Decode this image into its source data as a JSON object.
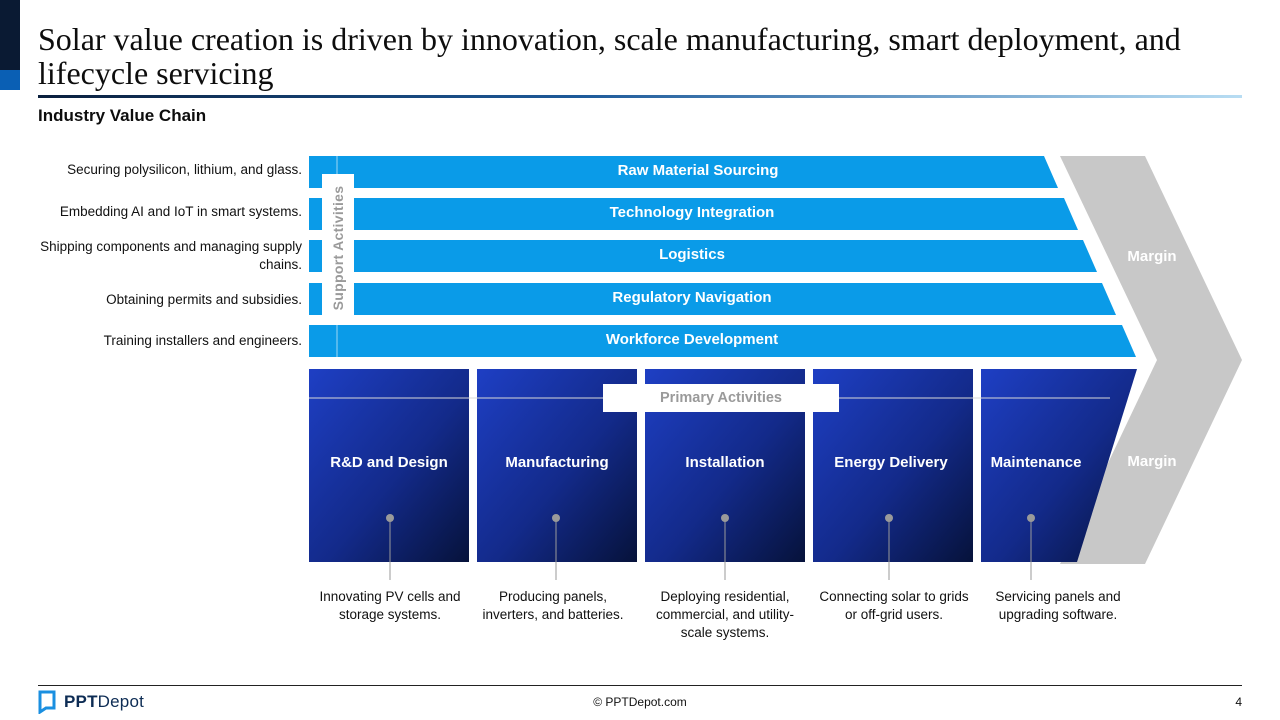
{
  "header": {
    "title": "Solar value creation is driven by innovation, scale manufacturing, smart deployment, and lifecycle servicing",
    "subtitle": "Industry Value Chain"
  },
  "support": {
    "section_label": "Support Activities",
    "activities": [
      {
        "label": "Raw Material Sourcing",
        "description": "Securing polysilicon, lithium, and glass."
      },
      {
        "label": "Technology Integration",
        "description": "Embedding AI and IoT in smart systems."
      },
      {
        "label": "Logistics",
        "description": "Shipping components and managing supply chains."
      },
      {
        "label": "Regulatory Navigation",
        "description": "Obtaining permits and subsidies."
      },
      {
        "label": "Workforce Development",
        "description": "Training installers and engineers."
      }
    ]
  },
  "primary": {
    "section_label": "Primary Activities",
    "activities": [
      {
        "label": "R&D and Design",
        "description": "Innovating PV cells and storage systems."
      },
      {
        "label": "Manufacturing",
        "description": "Producing panels, inverters, and batteries."
      },
      {
        "label": "Installation",
        "description": "Deploying residential, commercial, and utility-scale systems."
      },
      {
        "label": "Energy Delivery",
        "description": "Connecting solar to grids or off-grid users."
      },
      {
        "label": "Maintenance",
        "description": "Servicing panels and upgrading software."
      }
    ]
  },
  "margin": {
    "top_label": "Margin",
    "bottom_label": "Margin"
  },
  "footer": {
    "logo_bold": "PPT",
    "logo_regular": "Depot",
    "copyright": "© PPTDepot.com",
    "page_number": "4"
  },
  "colors": {
    "band": "#0a9be8",
    "box_light": "#1e3fc4",
    "box_dark": "#06123a",
    "margin": "#c8c8c8",
    "muted_text": "#9a9a9a"
  }
}
